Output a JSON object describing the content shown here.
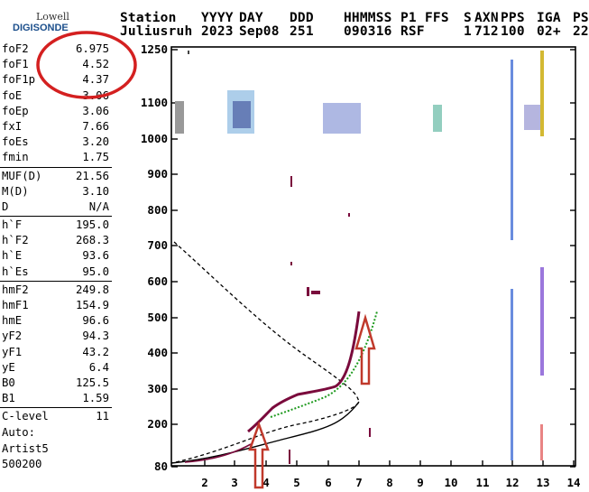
{
  "logo": {
    "line1": "Lowell",
    "line2": "DIGISONDE"
  },
  "header": {
    "row1": [
      "Station",
      "YYYY",
      "DAY",
      "DDD",
      "HHMMSS",
      "P1",
      "FFS",
      "S",
      "AXN",
      "PPS",
      "IGA",
      "PS"
    ],
    "row2": [
      "Juliusruh",
      "2023",
      "Sep08",
      "251",
      "090316",
      "RSF",
      "",
      "1",
      "712",
      "100",
      "02+",
      "22"
    ]
  },
  "params": [
    [
      {
        "label": "foF2",
        "value": "6.975"
      },
      {
        "label": "foF1",
        "value": "4.52"
      },
      {
        "label": "foF1p",
        "value": "4.37"
      },
      {
        "label": "foE",
        "value": "3.06"
      },
      {
        "label": "foEp",
        "value": "3.06"
      },
      {
        "label": "fxI",
        "value": "7.66"
      },
      {
        "label": "foEs",
        "value": "3.20"
      },
      {
        "label": "fmin",
        "value": "1.75"
      }
    ],
    [
      {
        "label": "MUF(D)",
        "value": "21.56"
      },
      {
        "label": "M(D)",
        "value": "3.10"
      },
      {
        "label": "D",
        "value": "N/A"
      }
    ],
    [
      {
        "label": "h`F",
        "value": "195.0"
      },
      {
        "label": "h`F2",
        "value": "268.3"
      },
      {
        "label": "h`E",
        "value": "93.6"
      },
      {
        "label": "h`Es",
        "value": "95.0"
      }
    ],
    [
      {
        "label": "hmF2",
        "value": "249.8"
      },
      {
        "label": "hmF1",
        "value": "154.9"
      },
      {
        "label": "hmE",
        "value": "96.6"
      },
      {
        "label": "yF2",
        "value": "94.3"
      },
      {
        "label": "yF1",
        "value": "43.2"
      },
      {
        "label": "yE",
        "value": "6.4"
      },
      {
        "label": "B0",
        "value": "125.5"
      },
      {
        "label": "B1",
        "value": "1.59"
      }
    ],
    [
      {
        "label": "C-level",
        "value": "11"
      }
    ]
  ],
  "footer": {
    "line1": "Auto:",
    "line2": "Artist5",
    "line3": "500200"
  },
  "chart_data": {
    "type": "scatter",
    "x_ticks": [
      "2",
      "3",
      "4",
      "5",
      "6",
      "7",
      "8",
      "9",
      "10",
      "11",
      "12",
      "13",
      "14"
    ],
    "y_ticks": [
      "1250",
      "1100",
      "1000",
      "900",
      "800",
      "700",
      "600",
      "500",
      "400",
      "300",
      "200",
      "80"
    ],
    "colors": {
      "trace_dark": "#7a0a3c",
      "trace_green": "#1f9a1f",
      "annotation": "#d42020",
      "arrow": "#c0392b"
    }
  }
}
